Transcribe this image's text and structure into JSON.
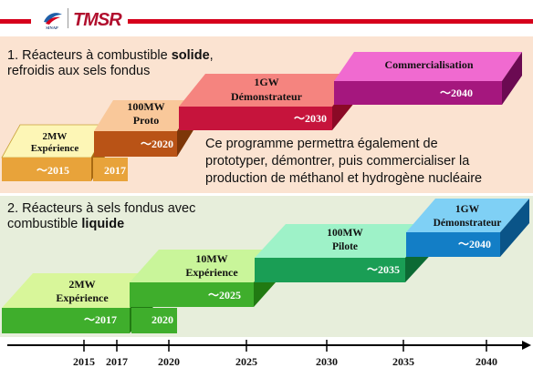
{
  "header": {
    "logo_left_text": "SINAP",
    "logo_right_text": "TMSR"
  },
  "solid_program": {
    "heading_prefix": "1. Réacteurs à combustible ",
    "heading_bold": "solide",
    "heading_suffix": ",",
    "heading_line2": "refroidis aux sels fondus",
    "note": "Ce programme permettra également de prototyper, démontrer, puis commercialiser la production de méthanol et hydrogène nucléaire",
    "steps": [
      {
        "title_line1": "2MW",
        "title_line2": "Expérience",
        "year": "〜2015",
        "year2": "2017",
        "color": "#e8a33a"
      },
      {
        "title_line1": "100MW",
        "title_line2": "Proto",
        "year": "〜2020",
        "color": "#b95316"
      },
      {
        "title_line1": "1GW",
        "title_line2": "Démonstrateur",
        "year": "〜2030",
        "color": "#c6143c"
      },
      {
        "title_line1": "Commercialisation",
        "title_line2": "",
        "year": "〜2040",
        "color": "#a5177e"
      }
    ]
  },
  "liquid_program": {
    "heading_prefix": "2. Réacteurs à sels fondus avec",
    "heading_line2_prefix": "combustible ",
    "heading_bold": "liquide",
    "steps": [
      {
        "title_line1": "2MW",
        "title_line2": "Expérience",
        "year": "〜2017",
        "year2": "2020",
        "color": "#3fae2c"
      },
      {
        "title_line1": "10MW",
        "title_line2": "Expérience",
        "year": "〜2025",
        "color": "#3fae2c"
      },
      {
        "title_line1": "100MW",
        "title_line2": "Pilote",
        "year": "〜2035",
        "color": "#1a9e55"
      },
      {
        "title_line1": "1GW",
        "title_line2": "Démonstrateur",
        "year": "〜2040",
        "color": "#137ec6"
      }
    ]
  },
  "timeline": {
    "years": [
      "2015",
      "2017",
      "2020",
      "2025",
      "2030",
      "2035",
      "2040"
    ]
  }
}
